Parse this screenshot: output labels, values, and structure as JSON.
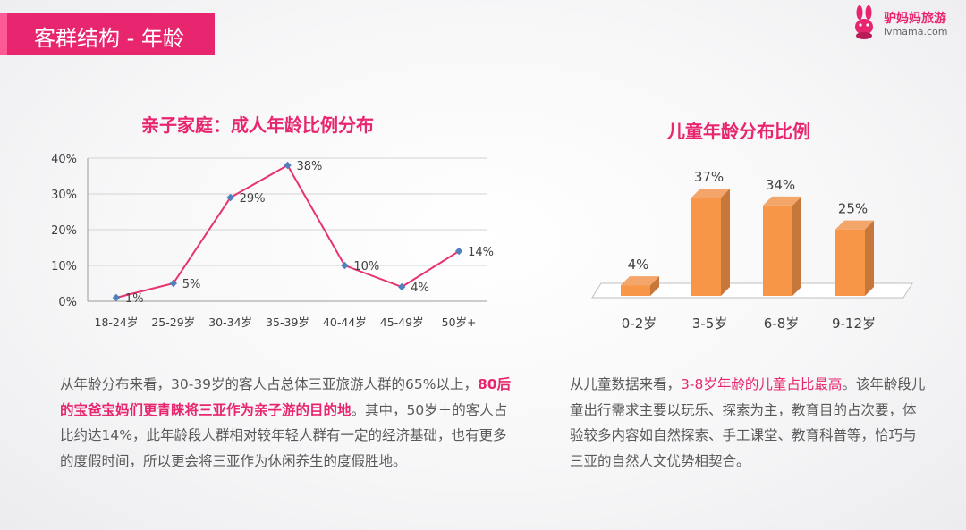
{
  "header": {
    "title": "客群结构 - 年龄",
    "logo": {
      "name": "驴妈妈旅游",
      "domain": "lvmama.com"
    }
  },
  "colors": {
    "accent": "#e8266f",
    "line_series": "#e8326e",
    "line_marker": "#4f81bd",
    "bar_front": "#f79646",
    "bar_side": "#c8773a"
  },
  "chart_data": [
    {
      "type": "line",
      "title": "亲子家庭：成人年龄比例分布",
      "categories": [
        "18-24岁",
        "25-29岁",
        "30-34岁",
        "35-39岁",
        "40-44岁",
        "45-49岁",
        "50岁+"
      ],
      "values": [
        1,
        5,
        29,
        38,
        10,
        4,
        14
      ],
      "data_labels": [
        "1%",
        "5%",
        "29%",
        "38%",
        "10%",
        "4%",
        "14%"
      ],
      "y_ticks": [
        "0%",
        "10%",
        "20%",
        "30%",
        "40%"
      ],
      "ylim": [
        0,
        40
      ],
      "grid": true
    },
    {
      "type": "bar",
      "title": "儿童年龄分布比例",
      "categories": [
        "0-2岁",
        "3-5岁",
        "6-8岁",
        "9-12岁"
      ],
      "values": [
        4,
        37,
        34,
        25
      ],
      "data_labels": [
        "4%",
        "37%",
        "34%",
        "25%"
      ],
      "ylim": [
        0,
        40
      ],
      "grid": false
    }
  ],
  "left_text": {
    "p1": "从年龄分布来看，30-39岁的客人占总体三亚旅游人群的65%以上，",
    "highlight": "80后的宝爸宝妈们更青睐将三亚作为亲子游的目的地",
    "p2": "。其中，50岁＋的客人占比约达14%，此年龄段人群相对较年轻人群有一定的经济基础，也有更多的度假时间，所以更会将三亚作为休闲养生的度假胜地。"
  },
  "right_text": {
    "p1": "从儿童数据来看，",
    "highlight": "3-8岁年龄的儿童占比最高",
    "p2": "。该年龄段儿童出行需求主要以玩乐、探索为主，教育目的占次要，体验较多内容如自然探索、手工课堂、教育科普等，恰巧与三亚的自然人文优势相契合。"
  }
}
